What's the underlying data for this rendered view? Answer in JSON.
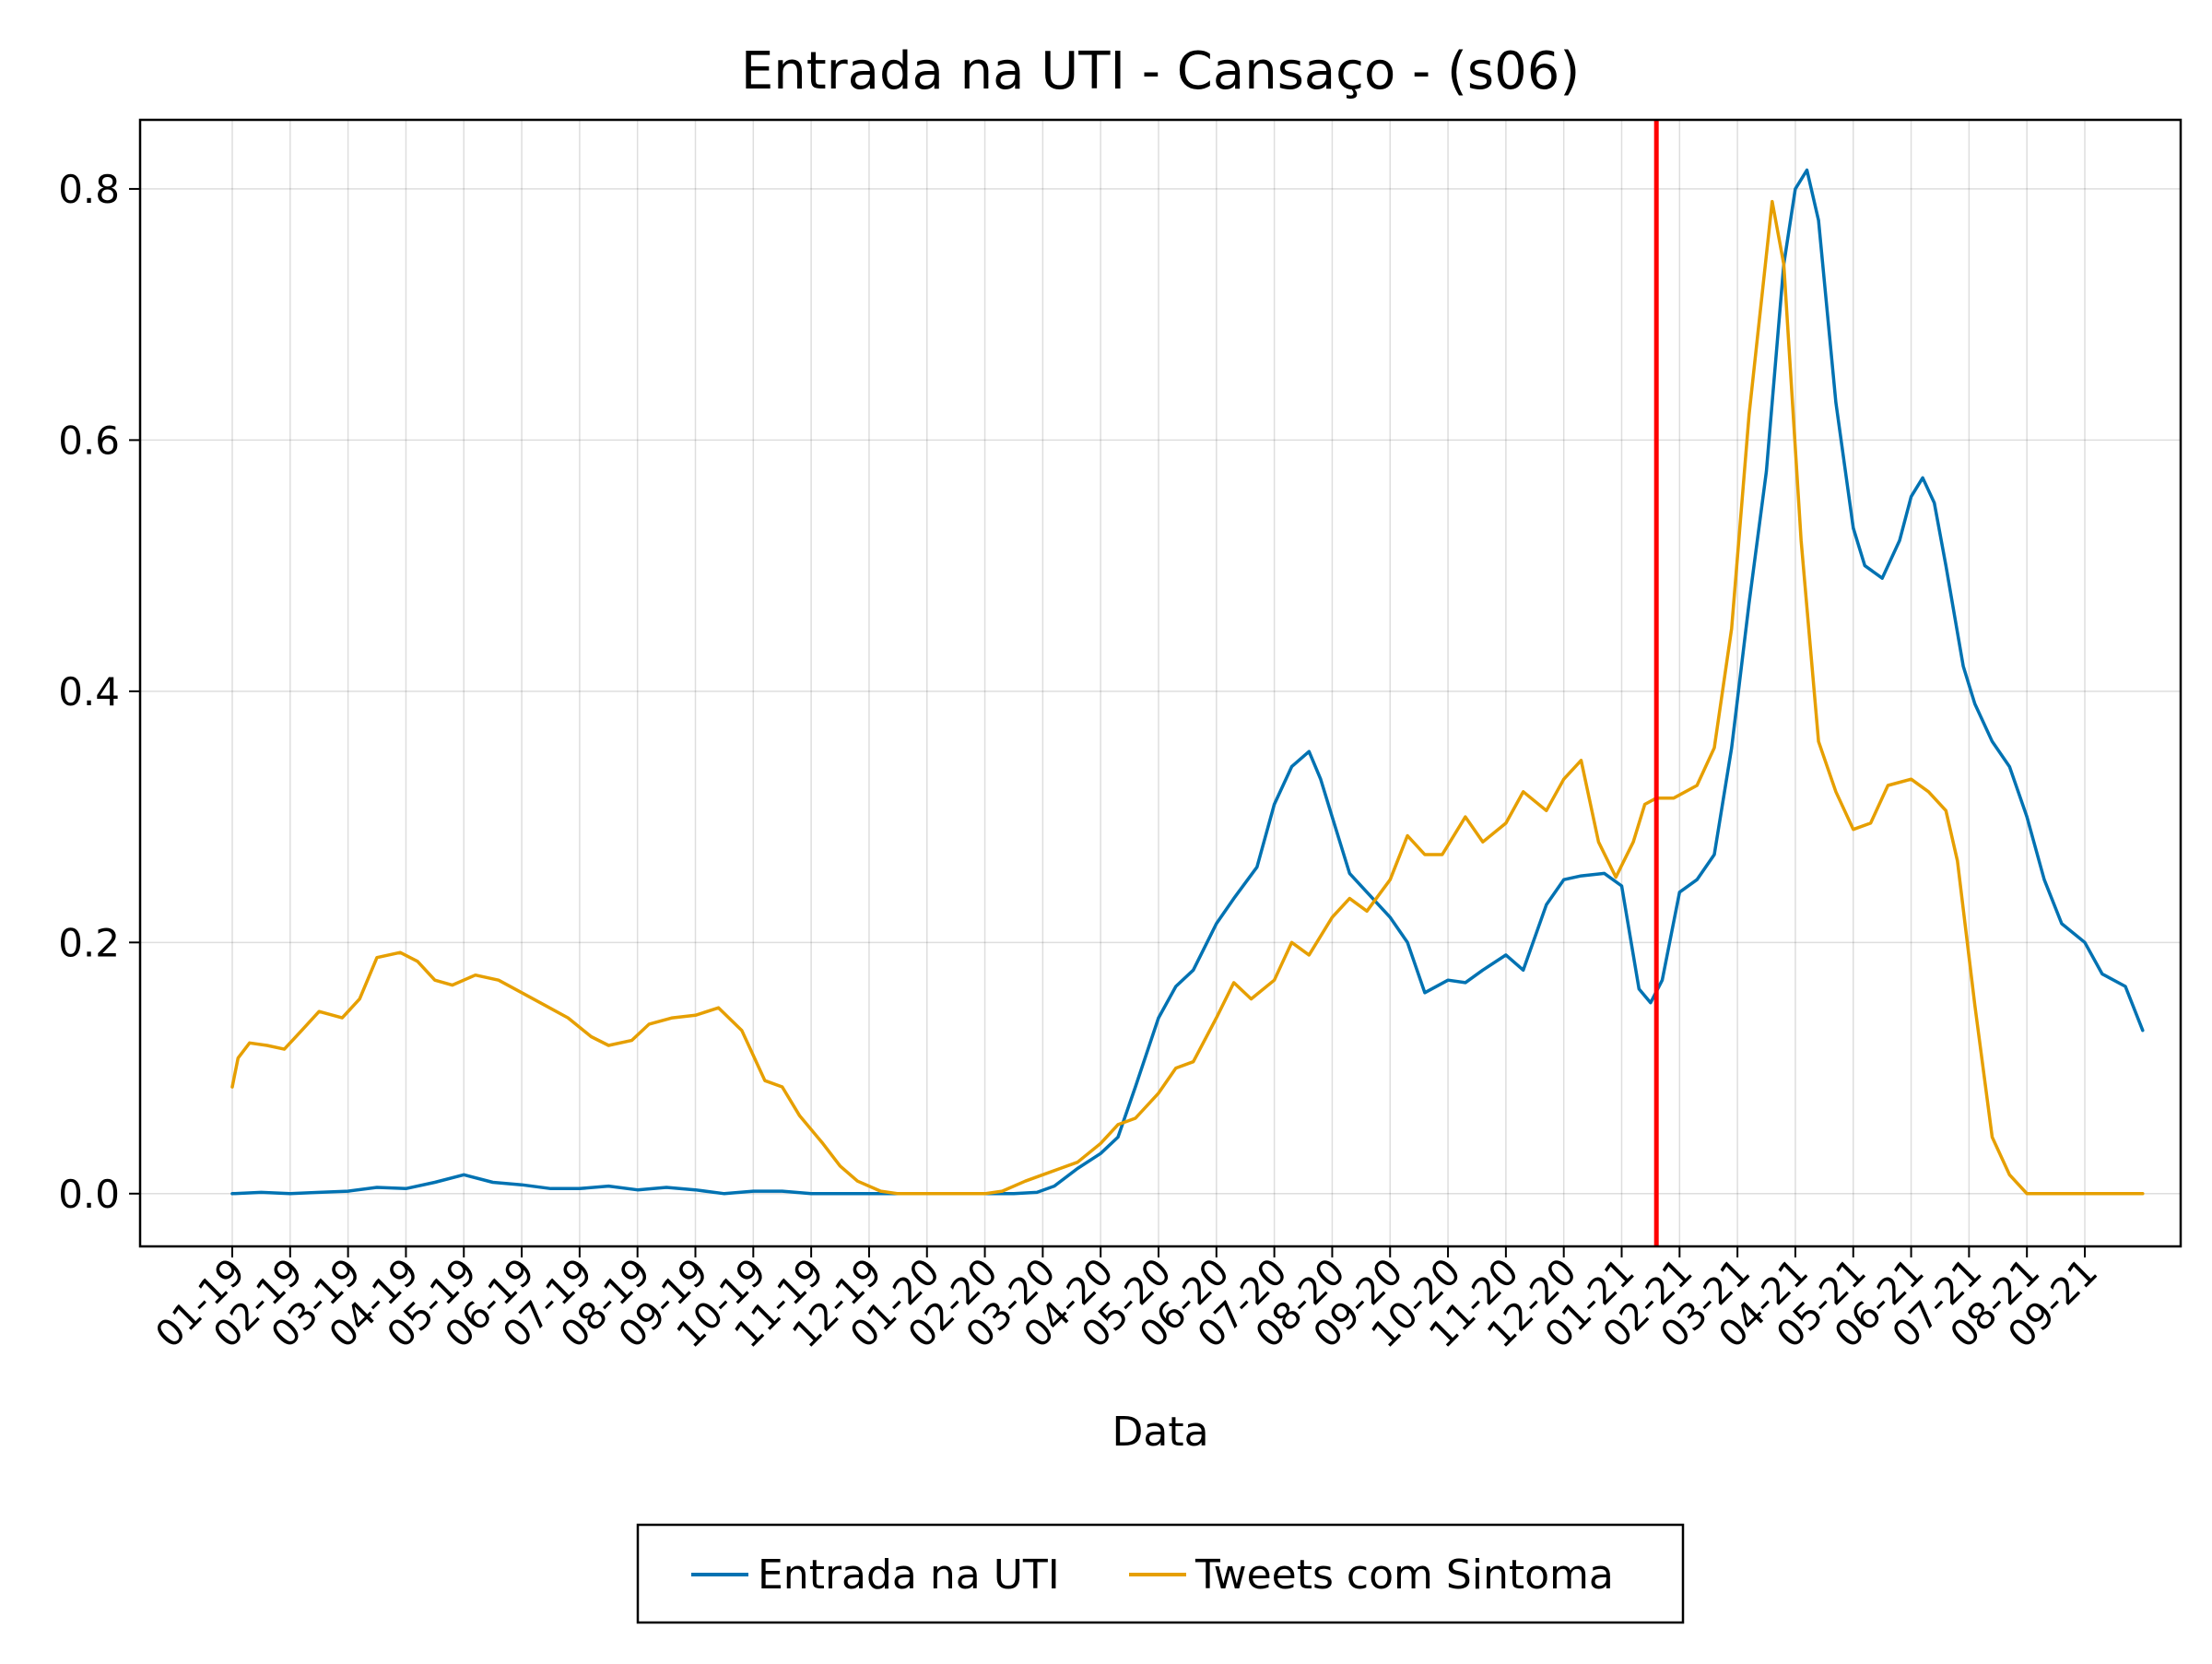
{
  "chart_data": {
    "type": "line",
    "title": "Entrada na UTI - Cansaço - (s06)",
    "xlabel": "Data",
    "ylabel": "",
    "x_range": [
      "2019-01",
      "2021-09"
    ],
    "ylim": [
      -0.042,
      0.855
    ],
    "yticks": [
      0.0,
      0.2,
      0.4,
      0.6,
      0.8
    ],
    "ytick_labels": [
      "0.0",
      "0.2",
      "0.4",
      "0.6",
      "0.8"
    ],
    "xtick_labels": [
      "01-19",
      "02-19",
      "03-19",
      "04-19",
      "05-19",
      "06-19",
      "07-19",
      "08-19",
      "09-19",
      "10-19",
      "11-19",
      "12-19",
      "01-20",
      "02-20",
      "03-20",
      "04-20",
      "05-20",
      "06-20",
      "07-20",
      "08-20",
      "09-20",
      "10-20",
      "11-20",
      "12-20",
      "01-21",
      "02-21",
      "03-21",
      "04-21",
      "05-21",
      "06-21",
      "07-21",
      "08-21",
      "09-21"
    ],
    "grid": true,
    "legend_position": "bottom",
    "vline": {
      "x": 24.6,
      "color": "#ff0000"
    },
    "series": [
      {
        "name": "Entrada na UTI",
        "color": "#0072b2",
        "points": [
          [
            0,
            0
          ],
          [
            0.5,
            0.001
          ],
          [
            1,
            0
          ],
          [
            1.5,
            0.001
          ],
          [
            2,
            0.002
          ],
          [
            2.5,
            0.005
          ],
          [
            3,
            0.004
          ],
          [
            3.5,
            0.009
          ],
          [
            4,
            0.015
          ],
          [
            4.5,
            0.009
          ],
          [
            5,
            0.007
          ],
          [
            5.5,
            0.004
          ],
          [
            6,
            0.004
          ],
          [
            6.5,
            0.006
          ],
          [
            7,
            0.003
          ],
          [
            7.5,
            0.005
          ],
          [
            8,
            0.003
          ],
          [
            8.5,
            0
          ],
          [
            9,
            0.002
          ],
          [
            9.5,
            0.002
          ],
          [
            10,
            0
          ],
          [
            10.5,
            0
          ],
          [
            11,
            0
          ],
          [
            11.5,
            0
          ],
          [
            12,
            0
          ],
          [
            12.5,
            0
          ],
          [
            13,
            0
          ],
          [
            13.5,
            0
          ],
          [
            13.9,
            0.001
          ],
          [
            14.2,
            0.006
          ],
          [
            14.6,
            0.02
          ],
          [
            15,
            0.032
          ],
          [
            15.3,
            0.045
          ],
          [
            15.6,
            0.085
          ],
          [
            16,
            0.14
          ],
          [
            16.3,
            0.165
          ],
          [
            16.6,
            0.178
          ],
          [
            17,
            0.215
          ],
          [
            17.3,
            0.235
          ],
          [
            17.7,
            0.26
          ],
          [
            18,
            0.31
          ],
          [
            18.3,
            0.34
          ],
          [
            18.6,
            0.352
          ],
          [
            18.8,
            0.33
          ],
          [
            19,
            0.3
          ],
          [
            19.3,
            0.255
          ],
          [
            19.6,
            0.24
          ],
          [
            20,
            0.22
          ],
          [
            20.3,
            0.2
          ],
          [
            20.6,
            0.16
          ],
          [
            21,
            0.17
          ],
          [
            21.3,
            0.168
          ],
          [
            21.6,
            0.178
          ],
          [
            22,
            0.19
          ],
          [
            22.3,
            0.178
          ],
          [
            22.7,
            0.23
          ],
          [
            23,
            0.25
          ],
          [
            23.3,
            0.253
          ],
          [
            23.7,
            0.255
          ],
          [
            24,
            0.245
          ],
          [
            24.3,
            0.163
          ],
          [
            24.5,
            0.152
          ],
          [
            24.7,
            0.17
          ],
          [
            25,
            0.24
          ],
          [
            25.3,
            0.25
          ],
          [
            25.6,
            0.27
          ],
          [
            25.9,
            0.355
          ],
          [
            26.2,
            0.47
          ],
          [
            26.5,
            0.575
          ],
          [
            26.8,
            0.74
          ],
          [
            27,
            0.8
          ],
          [
            27.2,
            0.815
          ],
          [
            27.4,
            0.775
          ],
          [
            27.7,
            0.63
          ],
          [
            28,
            0.53
          ],
          [
            28.2,
            0.5
          ],
          [
            28.5,
            0.49
          ],
          [
            28.8,
            0.52
          ],
          [
            29,
            0.555
          ],
          [
            29.2,
            0.57
          ],
          [
            29.4,
            0.55
          ],
          [
            29.6,
            0.5
          ],
          [
            29.9,
            0.42
          ],
          [
            30.1,
            0.39
          ],
          [
            30.4,
            0.36
          ],
          [
            30.7,
            0.34
          ],
          [
            31,
            0.3
          ],
          [
            31.3,
            0.25
          ],
          [
            31.6,
            0.215
          ],
          [
            32,
            0.2
          ],
          [
            32.3,
            0.175
          ],
          [
            32.7,
            0.165
          ],
          [
            33,
            0.13
          ]
        ]
      },
      {
        "name": "Tweets com Sintoma",
        "color": "#e69f00",
        "points": [
          [
            0,
            0.085
          ],
          [
            0.1,
            0.108
          ],
          [
            0.3,
            0.12
          ],
          [
            0.6,
            0.118
          ],
          [
            0.9,
            0.115
          ],
          [
            1.2,
            0.13
          ],
          [
            1.5,
            0.145
          ],
          [
            1.9,
            0.14
          ],
          [
            2.2,
            0.155
          ],
          [
            2.5,
            0.188
          ],
          [
            2.9,
            0.192
          ],
          [
            3.2,
            0.185
          ],
          [
            3.5,
            0.17
          ],
          [
            3.8,
            0.166
          ],
          [
            4.2,
            0.174
          ],
          [
            4.6,
            0.17
          ],
          [
            5,
            0.16
          ],
          [
            5.4,
            0.15
          ],
          [
            5.8,
            0.14
          ],
          [
            6.2,
            0.125
          ],
          [
            6.5,
            0.118
          ],
          [
            6.9,
            0.122
          ],
          [
            7.2,
            0.135
          ],
          [
            7.6,
            0.14
          ],
          [
            8,
            0.142
          ],
          [
            8.4,
            0.148
          ],
          [
            8.8,
            0.13
          ],
          [
            9.2,
            0.09
          ],
          [
            9.5,
            0.085
          ],
          [
            9.8,
            0.062
          ],
          [
            10.2,
            0.04
          ],
          [
            10.5,
            0.022
          ],
          [
            10.8,
            0.01
          ],
          [
            11.2,
            0.002
          ],
          [
            11.5,
            0
          ],
          [
            12,
            0
          ],
          [
            12.5,
            0
          ],
          [
            13,
            0
          ],
          [
            13.3,
            0.002
          ],
          [
            13.7,
            0.01
          ],
          [
            14,
            0.015
          ],
          [
            14.3,
            0.02
          ],
          [
            14.6,
            0.025
          ],
          [
            15,
            0.04
          ],
          [
            15.3,
            0.055
          ],
          [
            15.6,
            0.06
          ],
          [
            16,
            0.08
          ],
          [
            16.3,
            0.1
          ],
          [
            16.6,
            0.105
          ],
          [
            17,
            0.14
          ],
          [
            17.3,
            0.168
          ],
          [
            17.6,
            0.155
          ],
          [
            18,
            0.17
          ],
          [
            18.3,
            0.2
          ],
          [
            18.6,
            0.19
          ],
          [
            19,
            0.22
          ],
          [
            19.3,
            0.235
          ],
          [
            19.6,
            0.225
          ],
          [
            20,
            0.25
          ],
          [
            20.3,
            0.285
          ],
          [
            20.6,
            0.27
          ],
          [
            20.9,
            0.27
          ],
          [
            21.3,
            0.3
          ],
          [
            21.6,
            0.28
          ],
          [
            22,
            0.295
          ],
          [
            22.3,
            0.32
          ],
          [
            22.7,
            0.305
          ],
          [
            23,
            0.33
          ],
          [
            23.3,
            0.345
          ],
          [
            23.6,
            0.28
          ],
          [
            23.9,
            0.252
          ],
          [
            24.2,
            0.28
          ],
          [
            24.4,
            0.31
          ],
          [
            24.6,
            0.315
          ],
          [
            24.9,
            0.315
          ],
          [
            25.3,
            0.325
          ],
          [
            25.6,
            0.355
          ],
          [
            25.9,
            0.45
          ],
          [
            26.2,
            0.62
          ],
          [
            26.6,
            0.79
          ],
          [
            26.8,
            0.74
          ],
          [
            27.1,
            0.52
          ],
          [
            27.4,
            0.36
          ],
          [
            27.7,
            0.32
          ],
          [
            28,
            0.29
          ],
          [
            28.3,
            0.295
          ],
          [
            28.6,
            0.325
          ],
          [
            29,
            0.33
          ],
          [
            29.3,
            0.32
          ],
          [
            29.6,
            0.305
          ],
          [
            29.8,
            0.265
          ],
          [
            30.1,
            0.15
          ],
          [
            30.4,
            0.045
          ],
          [
            30.7,
            0.015
          ],
          [
            31,
            0
          ],
          [
            31.5,
            0
          ],
          [
            32,
            0
          ],
          [
            32.5,
            0
          ],
          [
            33,
            0
          ]
        ]
      }
    ]
  }
}
